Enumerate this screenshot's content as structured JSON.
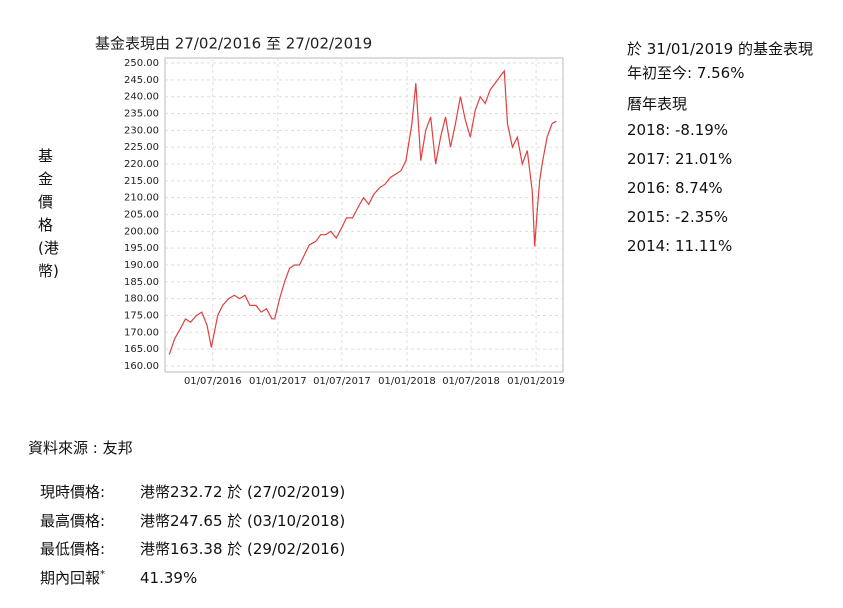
{
  "chart_data": {
    "type": "line",
    "title": "基金表現由 27/02/2016 至 27/02/2019",
    "ylabel": "基金價格(港幣)",
    "color": "#e04040",
    "grid": true,
    "xlim": [
      "17/02/2016",
      "18/03/2019"
    ],
    "xticks": [
      "01/07/2016",
      "01/01/2017",
      "01/07/2017",
      "01/01/2018",
      "01/07/2018",
      "01/01/2019"
    ],
    "ylim": [
      158.2,
      251.5
    ],
    "yticks": [
      {
        "value": 160,
        "label": "160.00"
      },
      {
        "value": 165,
        "label": "165.00"
      },
      {
        "value": 170,
        "label": "170.00"
      },
      {
        "value": 175,
        "label": "175.00"
      },
      {
        "value": 180,
        "label": "180.00"
      },
      {
        "value": 185,
        "label": "185.00"
      },
      {
        "value": 190,
        "label": "190.00"
      },
      {
        "value": 195,
        "label": "195.00"
      },
      {
        "value": 200,
        "label": "200.00"
      },
      {
        "value": 205,
        "label": "205.00"
      },
      {
        "value": 210,
        "label": "210.00"
      },
      {
        "value": 215,
        "label": "215.00"
      },
      {
        "value": 220,
        "label": "220.00"
      },
      {
        "value": 225,
        "label": "225.00"
      },
      {
        "value": 230,
        "label": "230.00"
      },
      {
        "value": 235,
        "label": "235.00"
      },
      {
        "value": 240,
        "label": "240.00"
      },
      {
        "value": 245,
        "label": "245.00"
      },
      {
        "value": 250,
        "label": "250.00"
      }
    ],
    "x": [
      "29/02/2016",
      "15/03/2016",
      "31/03/2016",
      "15/04/2016",
      "29/04/2016",
      "16/05/2016",
      "31/05/2016",
      "15/06/2016",
      "27/06/2016",
      "15/07/2016",
      "29/07/2016",
      "15/08/2016",
      "31/08/2016",
      "15/09/2016",
      "30/09/2016",
      "14/10/2016",
      "31/10/2016",
      "15/11/2016",
      "30/11/2016",
      "15/12/2016",
      "23/12/2016",
      "06/01/2017",
      "20/01/2017",
      "03/02/2017",
      "17/02/2017",
      "03/03/2017",
      "17/03/2017",
      "31/03/2017",
      "18/04/2017",
      "02/05/2017",
      "16/05/2017",
      "31/05/2017",
      "15/06/2017",
      "30/06/2017",
      "14/07/2017",
      "31/07/2017",
      "15/08/2017",
      "31/08/2017",
      "15/09/2017",
      "29/09/2017",
      "16/10/2017",
      "31/10/2017",
      "15/11/2017",
      "30/11/2017",
      "15/12/2017",
      "29/12/2017",
      "15/01/2018",
      "26/01/2018",
      "09/02/2018",
      "23/02/2018",
      "09/03/2018",
      "23/03/2018",
      "06/04/2018",
      "20/04/2018",
      "04/05/2018",
      "18/05/2018",
      "01/06/2018",
      "15/06/2018",
      "29/06/2018",
      "13/07/2018",
      "27/07/2018",
      "10/08/2018",
      "24/08/2018",
      "07/09/2018",
      "21/09/2018",
      "03/10/2018",
      "12/10/2018",
      "26/10/2018",
      "09/11/2018",
      "23/11/2018",
      "07/12/2018",
      "21/12/2018",
      "28/12/2018",
      "04/01/2019",
      "11/01/2019",
      "18/01/2019",
      "25/01/2019",
      "01/02/2019",
      "15/02/2019",
      "27/02/2019"
    ],
    "values": [
      163.38,
      168,
      171,
      174,
      173,
      175,
      176,
      172,
      165.5,
      175,
      178,
      180,
      181,
      180,
      181,
      178,
      178,
      176,
      177,
      174,
      174,
      180,
      185,
      189,
      190,
      190,
      193,
      196,
      197,
      199,
      199,
      200,
      198,
      201,
      204,
      204,
      207,
      210,
      208,
      211,
      213,
      214,
      216,
      217,
      218,
      221,
      232,
      244,
      221,
      230,
      234,
      220,
      228,
      234,
      225,
      232,
      240,
      233,
      228,
      236,
      240,
      238,
      242,
      244,
      246,
      247.65,
      232,
      225,
      228,
      220,
      224,
      212,
      195.5,
      206,
      215,
      220,
      224,
      228,
      232,
      232.72
    ]
  },
  "side": {
    "heading": "於 31/01/2019 的基金表現",
    "ytd": "年初至今: 7.56%",
    "annual_title": "曆年表現",
    "annual": [
      "2018: -8.19%",
      "2017: 21.01%",
      "2016: 8.74%",
      "2015: -2.35%",
      "2014: 11.11%"
    ]
  },
  "source": "資料來源 : 友邦",
  "summary": [
    {
      "label": "現時價格:",
      "value": "港幣232.72 於 (27/02/2019)"
    },
    {
      "label": "最高價格:",
      "value": "港幣247.65 於 (03/10/2018)"
    },
    {
      "label": "最低價格:",
      "value": "港幣163.38 於 (29/02/2016)"
    },
    {
      "label": "期內回報",
      "mark": "*",
      "value": "41.39%"
    }
  ]
}
